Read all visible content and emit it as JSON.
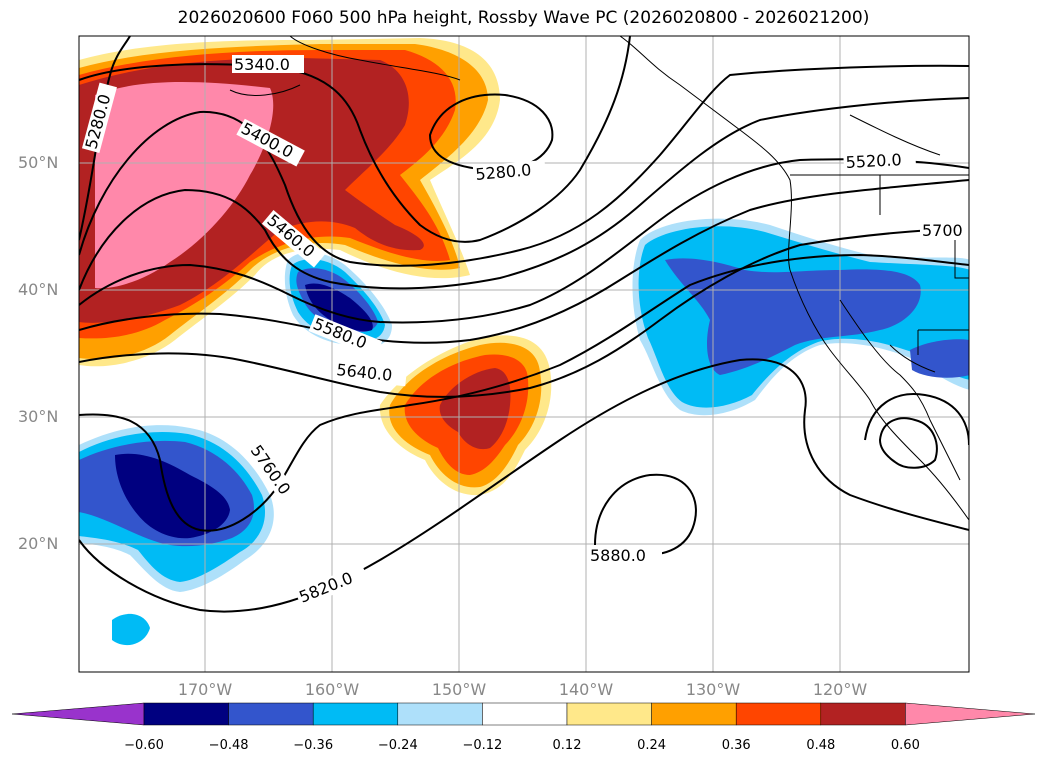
{
  "title": "2026020600 F060 500 hPa height, Rossby Wave PC (2026020800 - 2026021200)",
  "lat_labels": [
    "50°N",
    "40°N",
    "30°N",
    "20°N"
  ],
  "lon_labels": [
    "170°W",
    "160°W",
    "150°W",
    "140°W",
    "130°W",
    "120°W"
  ],
  "contour_labels": [
    "5340.0",
    "5280.0",
    "5400.0",
    "5280.0",
    "5460.0",
    "5520.0",
    "5700",
    "5580.0",
    "5640.0",
    "5760.0",
    "5820.0",
    "5880.0"
  ],
  "colorbar": {
    "ticks": [
      "−0.60",
      "−0.48",
      "−0.36",
      "−0.24",
      "−0.12",
      "0.12",
      "0.24",
      "0.36",
      "0.48",
      "0.60"
    ],
    "colors": [
      "#9933cc",
      "#000080",
      "#3355cc",
      "#00bbf5",
      "#aee0fa",
      "#ffffff",
      "#ffe88a",
      "#ffa000",
      "#ff4500",
      "#b22222",
      "#ff88aa"
    ]
  },
  "colors": {
    "pink": "#ff88aa",
    "darkred": "#b22222",
    "orangered": "#ff4500",
    "orange": "#ffa000",
    "yellow": "#ffe88a",
    "lightblue": "#aee0fa",
    "cyan": "#00bbf5",
    "blue": "#3355cc",
    "navy": "#000080",
    "grid": "#b0b0b0"
  }
}
